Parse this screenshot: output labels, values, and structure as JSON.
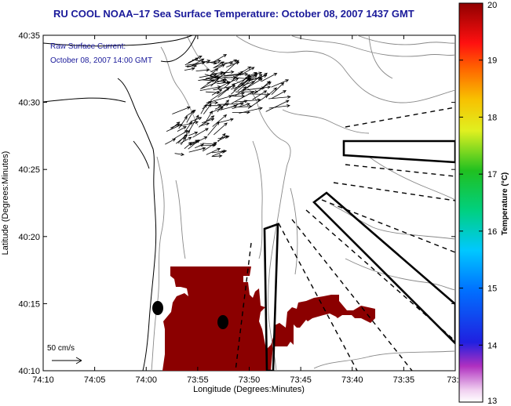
{
  "title": "RU COOL  NOAA–17  Sea Surface Temperature:  October 08, 2007 1437 GMT",
  "annotation": {
    "line1": "Raw Surface Current:",
    "line2": "October 08, 2007 14:00 GMT",
    "color": "#1a1a9a"
  },
  "scale": {
    "label": "50 cm/s",
    "value_cm_s": 50
  },
  "x_axis": {
    "label": "Longitude (Degrees:Minutes)",
    "ticks": [
      "74:10",
      "74:05",
      "74:00",
      "73:55",
      "73:50",
      "73:45",
      "73:40",
      "73:35",
      "73:3"
    ]
  },
  "y_axis": {
    "label": "Latitude (Degrees:Minutes)",
    "ticks": [
      "40:35",
      "40:30",
      "40:25",
      "40:20",
      "40:15",
      "40:10"
    ]
  },
  "colorbar": {
    "label": "Temperature (°C)",
    "min": 13,
    "max": 20,
    "ticks": [
      "20",
      "19",
      "18",
      "17",
      "16",
      "15",
      "14",
      "13"
    ]
  },
  "sst_color": "#8b0000",
  "buoy_color": "#000000"
}
